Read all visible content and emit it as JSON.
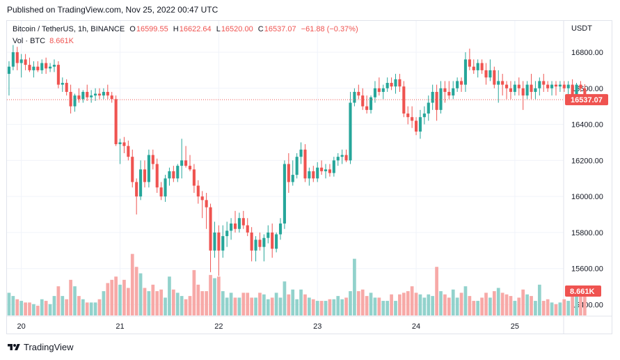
{
  "header": {
    "published": "Published on TradingView.com, Nov 25, 2022 00:47 UTC"
  },
  "legend": {
    "symbol": "Bitcoin / TetherUS, 1h, BINANCE",
    "o_label": "O",
    "o_value": "16599.55",
    "h_label": "H",
    "h_value": "16622.64",
    "l_label": "L",
    "l_value": "16520.00",
    "c_label": "C",
    "c_value": "16537.07",
    "change": "−61.88 (−0.37%)"
  },
  "volume_legend": {
    "label": "Vol · BTC",
    "value": "8.661K"
  },
  "footer": {
    "brand": "TradingView"
  },
  "colors": {
    "up": "#26a69a",
    "down": "#ef5350",
    "up_vol": "#92d2cc",
    "down_vol": "#f7a9a7"
  },
  "chart_data": {
    "type": "candlestick",
    "symbol": "Bitcoin / TetherUS",
    "interval": "1h",
    "exchange": "BINANCE",
    "y_unit": "USDT",
    "ylim": [
      15380,
      16900
    ],
    "y_ticks": [
      "16800.00",
      "16600.00",
      "16400.00",
      "16200.00",
      "16000.00",
      "15800.00",
      "15600.00",
      "15400.00"
    ],
    "y_tick_values": [
      16800,
      16600,
      16400,
      16200,
      16000,
      15800,
      15600,
      15400
    ],
    "x_ticks": [
      "20",
      "21",
      "22",
      "23",
      "24",
      "25"
    ],
    "last_price": "16537.07",
    "last_price_value": 16537.07,
    "last_volume_label": "8.661K",
    "volume_max": 40,
    "grid": true,
    "candles": [
      [
        16680,
        16750,
        16560,
        16720,
        14
      ],
      [
        16720,
        16840,
        16700,
        16800,
        12
      ],
      [
        16800,
        16830,
        16700,
        16740,
        10
      ],
      [
        16740,
        16790,
        16660,
        16760,
        9
      ],
      [
        16760,
        16790,
        16700,
        16730,
        8
      ],
      [
        16730,
        16770,
        16690,
        16700,
        8
      ],
      [
        16700,
        16750,
        16660,
        16720,
        7
      ],
      [
        16720,
        16750,
        16690,
        16700,
        6
      ],
      [
        16700,
        16760,
        16680,
        16740,
        10
      ],
      [
        16740,
        16770,
        16680,
        16710,
        9
      ],
      [
        16710,
        16740,
        16690,
        16720,
        7
      ],
      [
        16720,
        16760,
        16690,
        16730,
        12
      ],
      [
        16730,
        16750,
        16600,
        16620,
        18
      ],
      [
        16620,
        16660,
        16580,
        16630,
        12
      ],
      [
        16630,
        16650,
        16560,
        16580,
        10
      ],
      [
        16580,
        16620,
        16460,
        16500,
        22
      ],
      [
        16500,
        16570,
        16470,
        16560,
        18
      ],
      [
        16560,
        16600,
        16520,
        16540,
        12
      ],
      [
        16540,
        16590,
        16520,
        16580,
        10
      ],
      [
        16580,
        16620,
        16530,
        16550,
        8
      ],
      [
        16550,
        16590,
        16520,
        16560,
        8
      ],
      [
        16560,
        16600,
        16530,
        16570,
        8
      ],
      [
        16570,
        16600,
        16540,
        16560,
        10
      ],
      [
        16560,
        16600,
        16540,
        16580,
        15
      ],
      [
        16580,
        16620,
        16540,
        16560,
        20
      ],
      [
        16560,
        16580,
        16520,
        16540,
        22
      ],
      [
        16540,
        16560,
        16280,
        16290,
        24
      ],
      [
        16290,
        16320,
        16180,
        16300,
        19
      ],
      [
        16300,
        16330,
        16240,
        16280,
        22
      ],
      [
        16280,
        16310,
        16200,
        16220,
        17
      ],
      [
        16220,
        16260,
        16050,
        16080,
        38
      ],
      [
        16080,
        16100,
        15900,
        16000,
        30
      ],
      [
        16000,
        16200,
        15980,
        16150,
        26
      ],
      [
        16150,
        16200,
        16050,
        16080,
        17
      ],
      [
        16080,
        16260,
        16050,
        16230,
        15
      ],
      [
        16230,
        16260,
        16150,
        16180,
        19
      ],
      [
        16180,
        16210,
        16020,
        16050,
        15
      ],
      [
        16050,
        16080,
        15980,
        16000,
        16
      ],
      [
        16000,
        16120,
        15970,
        16100,
        11
      ],
      [
        16100,
        16160,
        16060,
        16140,
        24
      ],
      [
        16140,
        16170,
        16080,
        16100,
        16
      ],
      [
        16100,
        16180,
        16080,
        16170,
        14
      ],
      [
        16170,
        16320,
        16100,
        16200,
        12
      ],
      [
        16200,
        16280,
        16160,
        16170,
        10
      ],
      [
        16170,
        16230,
        16140,
        16150,
        12
      ],
      [
        16150,
        16180,
        16020,
        16060,
        28
      ],
      [
        16060,
        16090,
        15960,
        16000,
        19
      ],
      [
        16000,
        16030,
        15880,
        15980,
        15
      ],
      [
        15980,
        16020,
        15820,
        15940,
        15
      ],
      [
        15940,
        15960,
        15580,
        15700,
        25
      ],
      [
        15700,
        15860,
        15660,
        15800,
        23
      ],
      [
        15800,
        15840,
        15560,
        15700,
        24
      ],
      [
        15700,
        15840,
        15660,
        15780,
        15
      ],
      [
        15780,
        15860,
        15720,
        15810,
        11
      ],
      [
        15810,
        15880,
        15760,
        15850,
        14
      ],
      [
        15850,
        15920,
        15800,
        15820,
        11
      ],
      [
        15820,
        15910,
        15800,
        15880,
        11
      ],
      [
        15880,
        15920,
        15820,
        15840,
        14
      ],
      [
        15840,
        15880,
        15780,
        15800,
        14
      ],
      [
        15800,
        15830,
        15640,
        15700,
        11
      ],
      [
        15700,
        15780,
        15640,
        15760,
        11
      ],
      [
        15760,
        15800,
        15700,
        15720,
        14
      ],
      [
        15720,
        15790,
        15640,
        15770,
        13
      ],
      [
        15770,
        15840,
        15740,
        15800,
        10
      ],
      [
        15800,
        15850,
        15660,
        15710,
        11
      ],
      [
        15710,
        15800,
        15690,
        15790,
        14
      ],
      [
        15790,
        15880,
        15760,
        15850,
        11
      ],
      [
        15850,
        16200,
        15820,
        16180,
        21
      ],
      [
        16180,
        16240,
        16020,
        16080,
        13
      ],
      [
        16080,
        16200,
        16060,
        16120,
        16
      ],
      [
        16120,
        16240,
        16100,
        16220,
        10
      ],
      [
        16220,
        16300,
        16180,
        16260,
        16
      ],
      [
        16260,
        16290,
        16080,
        16100,
        13
      ],
      [
        16100,
        16160,
        16060,
        16140,
        11
      ],
      [
        16140,
        16170,
        16080,
        16100,
        10
      ],
      [
        16100,
        16190,
        16080,
        16160,
        9
      ],
      [
        16160,
        16200,
        16120,
        16140,
        9
      ],
      [
        16140,
        16180,
        16100,
        16150,
        9
      ],
      [
        16150,
        16180,
        16110,
        16130,
        10
      ],
      [
        16130,
        16220,
        16110,
        16200,
        10
      ],
      [
        16200,
        16240,
        16170,
        16220,
        12
      ],
      [
        16220,
        16260,
        16180,
        16230,
        10
      ],
      [
        16230,
        16260,
        16190,
        16200,
        11
      ],
      [
        16200,
        16580,
        16180,
        16520,
        15
      ],
      [
        16520,
        16600,
        16500,
        16580,
        35
      ],
      [
        16580,
        16620,
        16540,
        16560,
        15
      ],
      [
        16560,
        16600,
        16480,
        16500,
        16
      ],
      [
        16500,
        16560,
        16460,
        16480,
        12
      ],
      [
        16480,
        16560,
        16460,
        16550,
        14
      ],
      [
        16550,
        16640,
        16520,
        16600,
        11
      ],
      [
        16600,
        16660,
        16560,
        16580,
        11
      ],
      [
        16580,
        16620,
        16540,
        16600,
        9
      ],
      [
        16600,
        16660,
        16580,
        16630,
        9
      ],
      [
        16630,
        16660,
        16590,
        16610,
        13
      ],
      [
        16610,
        16680,
        16570,
        16650,
        9
      ],
      [
        16650,
        16680,
        16580,
        16610,
        13
      ],
      [
        16610,
        16640,
        16440,
        16460,
        14
      ],
      [
        16460,
        16500,
        16400,
        16440,
        15
      ],
      [
        16440,
        16500,
        16380,
        16420,
        18
      ],
      [
        16420,
        16440,
        16340,
        16360,
        14
      ],
      [
        16360,
        16480,
        16320,
        16440,
        13
      ],
      [
        16440,
        16500,
        16400,
        16460,
        11
      ],
      [
        16460,
        16560,
        16420,
        16520,
        13
      ],
      [
        16520,
        16620,
        16480,
        16580,
        12
      ],
      [
        16580,
        16620,
        16420,
        16480,
        30
      ],
      [
        16480,
        16640,
        16460,
        16600,
        15
      ],
      [
        16600,
        16640,
        16520,
        16580,
        13
      ],
      [
        16580,
        16640,
        16540,
        16560,
        11
      ],
      [
        16560,
        16640,
        16540,
        16600,
        16
      ],
      [
        16600,
        16660,
        16580,
        16640,
        11
      ],
      [
        16640,
        16660,
        16580,
        16620,
        14
      ],
      [
        16620,
        16800,
        16580,
        16760,
        18
      ],
      [
        16760,
        16820,
        16700,
        16720,
        12
      ],
      [
        16720,
        16760,
        16680,
        16700,
        9
      ],
      [
        16700,
        16760,
        16660,
        16740,
        9
      ],
      [
        16740,
        16760,
        16680,
        16700,
        11
      ],
      [
        16700,
        16740,
        16620,
        16660,
        14
      ],
      [
        16660,
        16760,
        16640,
        16700,
        11
      ],
      [
        16700,
        16720,
        16600,
        16620,
        15
      ],
      [
        16620,
        16700,
        16520,
        16640,
        17
      ],
      [
        16640,
        16680,
        16560,
        16620,
        14
      ],
      [
        16620,
        16640,
        16540,
        16600,
        13
      ],
      [
        16600,
        16640,
        16540,
        16580,
        12
      ],
      [
        16580,
        16640,
        16560,
        16620,
        9
      ],
      [
        16620,
        16660,
        16560,
        16600,
        11
      ],
      [
        16600,
        16640,
        16480,
        16560,
        16
      ],
      [
        16560,
        16640,
        16540,
        16620,
        13
      ],
      [
        16620,
        16680,
        16540,
        16580,
        12
      ],
      [
        16580,
        16640,
        16540,
        16600,
        9
      ],
      [
        16600,
        16660,
        16560,
        16640,
        19
      ],
      [
        16640,
        16680,
        16580,
        16620,
        9
      ],
      [
        16620,
        16640,
        16580,
        16600,
        10
      ],
      [
        16600,
        16640,
        16560,
        16620,
        8
      ],
      [
        16620,
        16640,
        16560,
        16610,
        7
      ],
      [
        16610,
        16640,
        16580,
        16620,
        8
      ],
      [
        16620,
        16640,
        16580,
        16600,
        10
      ],
      [
        16600,
        16640,
        16560,
        16620,
        9
      ],
      [
        16620,
        16650,
        16520,
        16560,
        12
      ],
      [
        16560,
        16630,
        16540,
        16620,
        12
      ],
      [
        16620,
        16640,
        16580,
        16600,
        13
      ],
      [
        16599.55,
        16622.64,
        16520,
        16537.07,
        13
      ]
    ]
  }
}
